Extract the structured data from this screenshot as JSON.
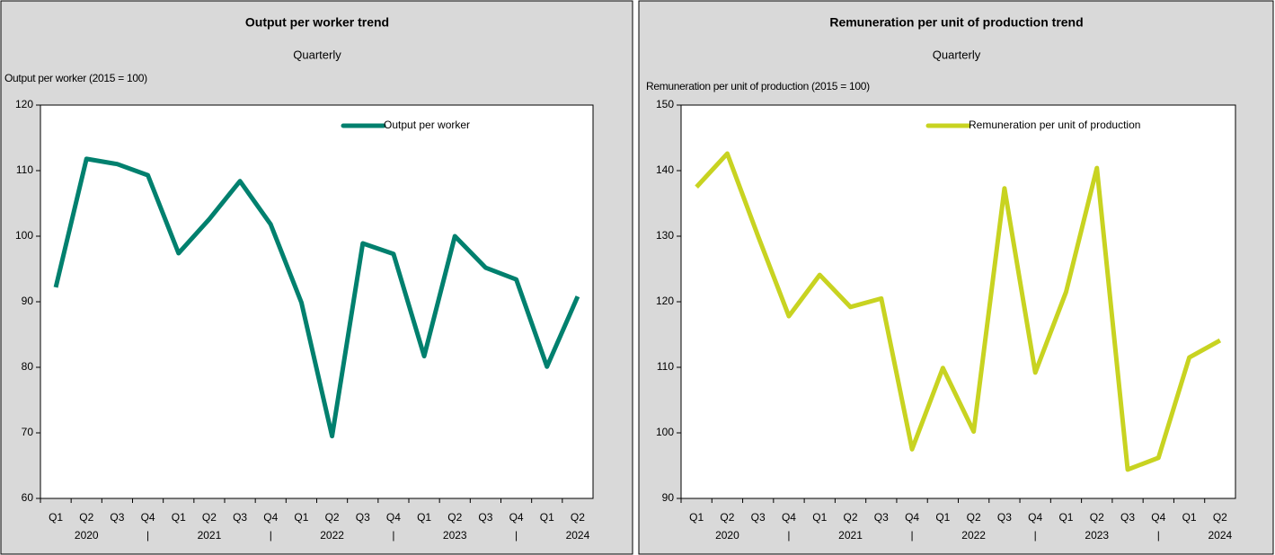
{
  "chart_data": [
    {
      "type": "line",
      "title": "Output per worker trend",
      "subtitle": "Quarterly",
      "y_label": "Output per worker (2015 = 100)",
      "categories": [
        "Q1",
        "Q2",
        "Q3",
        "Q4",
        "Q1",
        "Q2",
        "Q3",
        "Q4",
        "Q1",
        "Q2",
        "Q3",
        "Q4",
        "Q1",
        "Q2",
        "Q3",
        "Q4",
        "Q1",
        "Q2"
      ],
      "category_groups": [
        null,
        "2020",
        null,
        "|",
        null,
        "2021",
        null,
        "|",
        null,
        "2022",
        null,
        "|",
        null,
        "2023",
        null,
        "|",
        null,
        "2024"
      ],
      "series": [
        {
          "name": "Output per worker",
          "color": "#00806e",
          "values": [
            92.2,
            111.8,
            111.0,
            109.3,
            97.4,
            102.6,
            108.4,
            101.8,
            89.9,
            69.5,
            98.9,
            97.3,
            81.7,
            100.0,
            95.2,
            93.4,
            80.1,
            90.8
          ]
        }
      ],
      "ylim": [
        60,
        120
      ],
      "yticks": [
        60,
        70,
        80,
        90,
        100,
        110,
        120
      ],
      "legend": "top-right"
    },
    {
      "type": "line",
      "title": "Remuneration per unit of production trend",
      "subtitle": "Quarterly",
      "y_label": "Remuneration per unit of production (2015 = 100)",
      "categories": [
        "Q1",
        "Q2",
        "Q3",
        "Q4",
        "Q1",
        "Q2",
        "Q3",
        "Q4",
        "Q1",
        "Q2",
        "Q3",
        "Q4",
        "Q1",
        "Q2",
        "Q3",
        "Q4",
        "Q1",
        "Q2"
      ],
      "category_groups": [
        null,
        "2020",
        null,
        "|",
        null,
        "2021",
        null,
        "|",
        null,
        "2022",
        null,
        "|",
        null,
        "2023",
        null,
        "|",
        null,
        "2024"
      ],
      "series": [
        {
          "name": "Remuneration per unit of production",
          "color": "#c8d321",
          "values": [
            137.5,
            142.6,
            130.0,
            117.8,
            124.1,
            119.2,
            120.5,
            97.5,
            109.9,
            100.2,
            137.3,
            109.2,
            121.5,
            140.4,
            94.4,
            96.2,
            111.5,
            114.1
          ]
        }
      ],
      "ylim": [
        90,
        150
      ],
      "yticks": [
        90,
        100,
        110,
        120,
        130,
        140,
        150
      ],
      "legend": "top-right"
    }
  ]
}
